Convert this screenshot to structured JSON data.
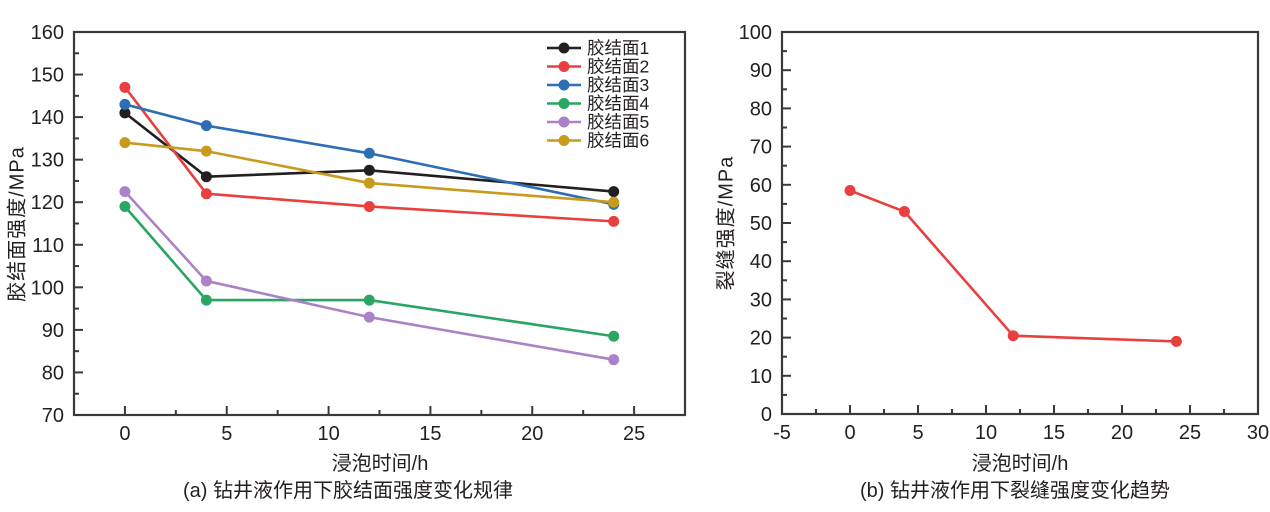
{
  "colors": {
    "background": "#ffffff",
    "axis": "#3d3738",
    "text": "#231f20"
  },
  "chart_data": [
    {
      "type": "line",
      "caption": "(a) 钻井液作用下胶结面强度变化规律",
      "xlabel": "浸泡时间/h",
      "ylabel": "胶结面强度/MPa",
      "x": [
        0,
        4,
        12,
        24
      ],
      "series": [
        {
          "name": "胶结面1",
          "color": "#231f20",
          "values": [
            141,
            126,
            127.5,
            122.5
          ]
        },
        {
          "name": "胶结面2",
          "color": "#e7403e",
          "values": [
            147,
            122,
            119,
            115.5
          ]
        },
        {
          "name": "胶结面3",
          "color": "#2d6eb5",
          "values": [
            143,
            138,
            131.5,
            119.5
          ]
        },
        {
          "name": "胶结面4",
          "color": "#2aa564",
          "values": [
            119,
            97,
            97,
            88.5
          ]
        },
        {
          "name": "胶结面5",
          "color": "#a982c7",
          "values": [
            122.5,
            101.5,
            93,
            83
          ]
        },
        {
          "name": "胶结面6",
          "color": "#c89b1c",
          "values": [
            134,
            132,
            124.5,
            120
          ]
        }
      ],
      "xlim": [
        -2.5,
        27.5
      ],
      "ylim": [
        70,
        160
      ],
      "x_ticks": [
        0,
        5,
        10,
        15,
        20,
        25
      ],
      "y_ticks": [
        70,
        80,
        90,
        100,
        110,
        120,
        130,
        140,
        150,
        160
      ],
      "minor_x_step": 2.5,
      "minor_y_step": 5,
      "grid": false,
      "legend": {
        "visible": true,
        "position": "top-right"
      }
    },
    {
      "type": "line",
      "caption": "(b) 钻井液作用下裂缝强度变化趋势",
      "xlabel": "浸泡时间/h",
      "ylabel": "裂缝强度/MPa",
      "x": [
        0,
        4,
        12,
        24
      ],
      "series": [
        {
          "name": "裂缝强度",
          "color": "#e7403e",
          "values": [
            58.5,
            53,
            20.5,
            19
          ]
        }
      ],
      "xlim": [
        -5,
        30
      ],
      "ylim": [
        0,
        100
      ],
      "x_ticks": [
        -5,
        0,
        5,
        10,
        15,
        20,
        25,
        30
      ],
      "y_ticks": [
        0,
        10,
        20,
        30,
        40,
        50,
        60,
        70,
        80,
        90,
        100
      ],
      "minor_x_step": 2.5,
      "minor_y_step": 5,
      "grid": false,
      "legend": {
        "visible": false,
        "position": "none"
      }
    }
  ]
}
